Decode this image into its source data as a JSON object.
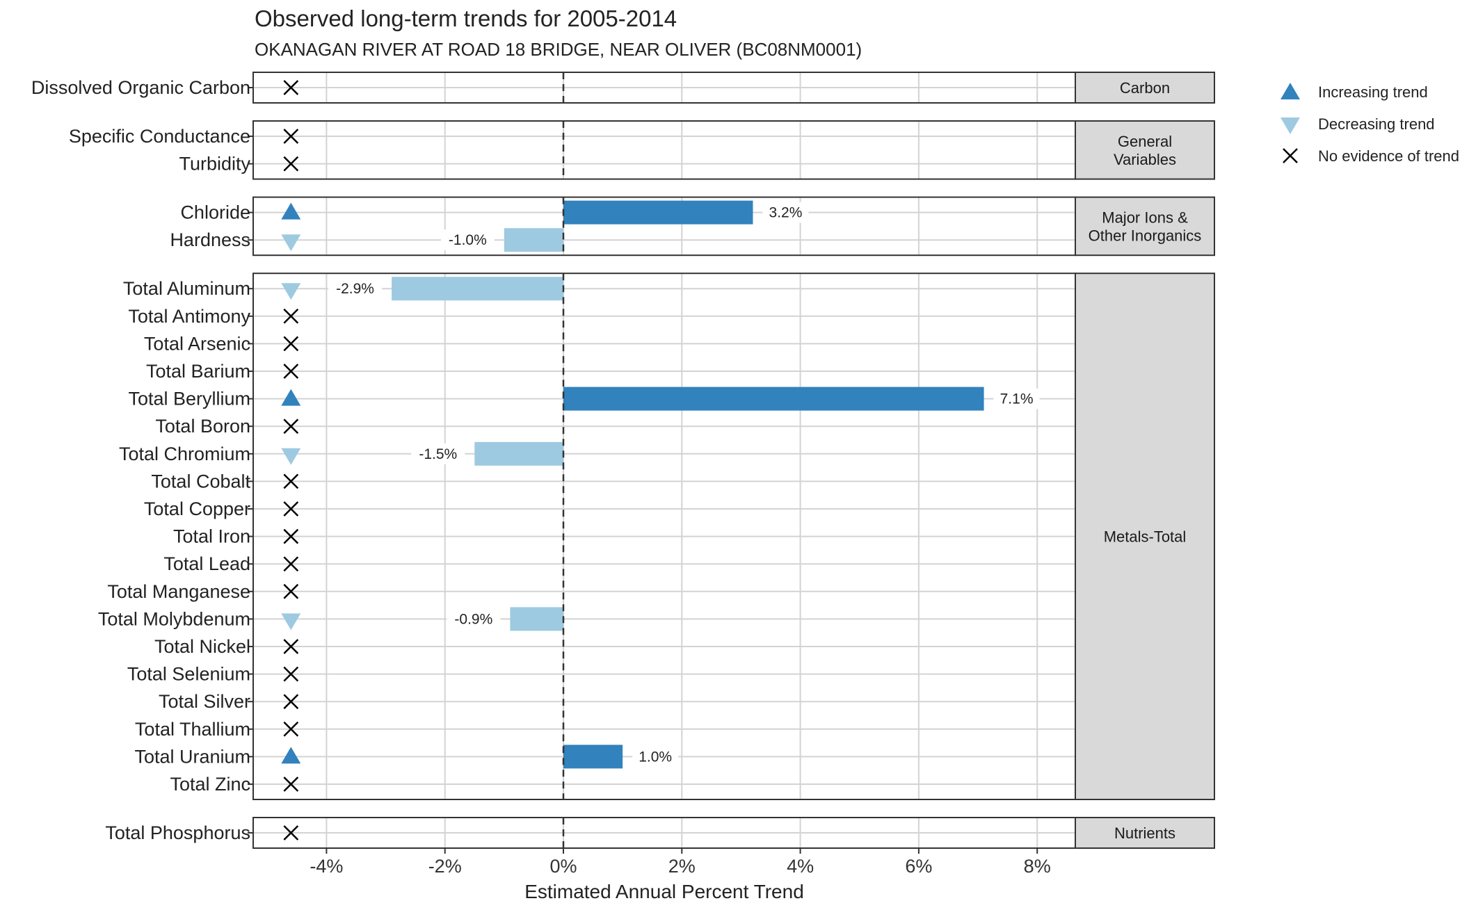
{
  "chart_data": {
    "type": "bar",
    "title": "Observed long-term trends for 2005-2014",
    "subtitle": "OKANAGAN RIVER AT ROAD 18 BRIDGE, NEAR OLIVER (BC08NM0001)",
    "xlabel": "Estimated Annual Percent Trend",
    "xlim": [
      -5.3,
      8.6
    ],
    "xticks": [
      -4,
      -2,
      0,
      2,
      4,
      6,
      8
    ],
    "xtick_labels": [
      "-4%",
      "-2%",
      "0%",
      "2%",
      "4%",
      "6%",
      "8%"
    ],
    "orientation": "horizontal",
    "grid": true,
    "legend_position": "top-right",
    "colors": {
      "increasing": "#3182bd",
      "decreasing": "#9ecae1",
      "none": "#000000",
      "strip_fill": "#d9d9d9",
      "grid": "#d3d3d3"
    },
    "legend": [
      {
        "label": "Increasing trend",
        "trend": "increasing"
      },
      {
        "label": "Decreasing trend",
        "trend": "decreasing"
      },
      {
        "label": "No evidence of trend",
        "trend": "none"
      }
    ],
    "facets": [
      {
        "strip": [
          "Carbon"
        ],
        "rows": [
          {
            "name": "Dissolved Organic Carbon",
            "trend": "none",
            "value": null,
            "label": ""
          }
        ]
      },
      {
        "strip": [
          "General",
          "Variables"
        ],
        "rows": [
          {
            "name": "Specific Conductance",
            "trend": "none",
            "value": null,
            "label": ""
          },
          {
            "name": "Turbidity",
            "trend": "none",
            "value": null,
            "label": ""
          }
        ]
      },
      {
        "strip": [
          "Major Ions &",
          "Other Inorganics"
        ],
        "rows": [
          {
            "name": "Chloride",
            "trend": "increasing",
            "value": 3.2,
            "label": "3.2%"
          },
          {
            "name": "Hardness",
            "trend": "decreasing",
            "value": -1.0,
            "label": "-1.0%"
          }
        ]
      },
      {
        "strip": [
          "Metals-Total"
        ],
        "rows": [
          {
            "name": "Total Aluminum",
            "trend": "decreasing",
            "value": -2.9,
            "label": "-2.9%"
          },
          {
            "name": "Total Antimony",
            "trend": "none",
            "value": null,
            "label": ""
          },
          {
            "name": "Total Arsenic",
            "trend": "none",
            "value": null,
            "label": ""
          },
          {
            "name": "Total Barium",
            "trend": "none",
            "value": null,
            "label": ""
          },
          {
            "name": "Total Beryllium",
            "trend": "increasing",
            "value": 7.1,
            "label": "7.1%"
          },
          {
            "name": "Total Boron",
            "trend": "none",
            "value": null,
            "label": ""
          },
          {
            "name": "Total Chromium",
            "trend": "decreasing",
            "value": -1.5,
            "label": "-1.5%"
          },
          {
            "name": "Total Cobalt",
            "trend": "none",
            "value": null,
            "label": ""
          },
          {
            "name": "Total Copper",
            "trend": "none",
            "value": null,
            "label": ""
          },
          {
            "name": "Total Iron",
            "trend": "none",
            "value": null,
            "label": ""
          },
          {
            "name": "Total Lead",
            "trend": "none",
            "value": null,
            "label": ""
          },
          {
            "name": "Total Manganese",
            "trend": "none",
            "value": null,
            "label": ""
          },
          {
            "name": "Total Molybdenum",
            "trend": "decreasing",
            "value": -0.9,
            "label": "-0.9%"
          },
          {
            "name": "Total Nickel",
            "trend": "none",
            "value": null,
            "label": ""
          },
          {
            "name": "Total Selenium",
            "trend": "none",
            "value": null,
            "label": ""
          },
          {
            "name": "Total Silver",
            "trend": "none",
            "value": null,
            "label": ""
          },
          {
            "name": "Total Thallium",
            "trend": "none",
            "value": null,
            "label": ""
          },
          {
            "name": "Total Uranium",
            "trend": "increasing",
            "value": 1.0,
            "label": "1.0%"
          },
          {
            "name": "Total Zinc",
            "trend": "none",
            "value": null,
            "label": ""
          }
        ]
      },
      {
        "strip": [
          "Nutrients"
        ],
        "rows": [
          {
            "name": "Total Phosphorus",
            "trend": "none",
            "value": null,
            "label": ""
          }
        ]
      }
    ]
  }
}
